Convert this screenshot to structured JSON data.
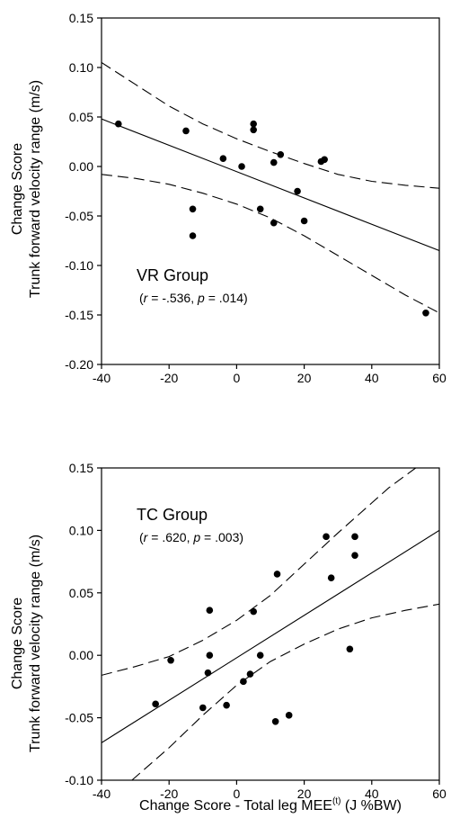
{
  "chart_data": [
    {
      "type": "scatter",
      "group_label": "VR Group",
      "stats": {
        "r": "-.536",
        "p": ".014"
      },
      "ylabel_line1": "Change Score",
      "ylabel_line2": "Trunk forward velocity range (m/s)",
      "xlabel": "",
      "xlim": [
        -40,
        60
      ],
      "ylim": [
        -0.2,
        0.15
      ],
      "xticks": [
        "-40",
        "-20",
        "0",
        "20",
        "40",
        "60"
      ],
      "yticks": [
        "-0.20",
        "-0.15",
        "-0.10",
        "-0.05",
        "0.00",
        "0.05",
        "0.10",
        "0.15"
      ],
      "points": [
        {
          "x": -35,
          "y": 0.043
        },
        {
          "x": -15,
          "y": 0.036
        },
        {
          "x": -13,
          "y": -0.043
        },
        {
          "x": -13,
          "y": -0.07
        },
        {
          "x": -4,
          "y": 0.008
        },
        {
          "x": 1.5,
          "y": 0.0
        },
        {
          "x": 5,
          "y": 0.043
        },
        {
          "x": 5,
          "y": 0.037
        },
        {
          "x": 7,
          "y": -0.043
        },
        {
          "x": 11,
          "y": 0.004
        },
        {
          "x": 11,
          "y": -0.057
        },
        {
          "x": 13,
          "y": 0.012
        },
        {
          "x": 18,
          "y": -0.025
        },
        {
          "x": 20,
          "y": -0.055
        },
        {
          "x": 25,
          "y": 0.005
        },
        {
          "x": 26,
          "y": 0.007
        },
        {
          "x": 56,
          "y": -0.148
        }
      ],
      "fit_line": [
        {
          "x": -40,
          "y": 0.048
        },
        {
          "x": 60,
          "y": -0.085
        }
      ],
      "ci_upper": [
        {
          "x": -40,
          "y": 0.105
        },
        {
          "x": -30,
          "y": 0.083
        },
        {
          "x": -20,
          "y": 0.061
        },
        {
          "x": -10,
          "y": 0.043
        },
        {
          "x": 0,
          "y": 0.028
        },
        {
          "x": 10,
          "y": 0.015
        },
        {
          "x": 20,
          "y": 0.003
        },
        {
          "x": 30,
          "y": -0.008
        },
        {
          "x": 40,
          "y": -0.015
        },
        {
          "x": 50,
          "y": -0.019
        },
        {
          "x": 60,
          "y": -0.022
        }
      ],
      "ci_lower": [
        {
          "x": -40,
          "y": -0.008
        },
        {
          "x": -30,
          "y": -0.012
        },
        {
          "x": -20,
          "y": -0.018
        },
        {
          "x": -10,
          "y": -0.027
        },
        {
          "x": 0,
          "y": -0.038
        },
        {
          "x": 10,
          "y": -0.052
        },
        {
          "x": 20,
          "y": -0.07
        },
        {
          "x": 30,
          "y": -0.09
        },
        {
          "x": 40,
          "y": -0.11
        },
        {
          "x": 50,
          "y": -0.13
        },
        {
          "x": 60,
          "y": -0.148
        }
      ]
    },
    {
      "type": "scatter",
      "group_label": "TC Group",
      "stats": {
        "r": ".620",
        "p": ".003"
      },
      "ylabel_line1": "Change Score",
      "ylabel_line2": "Trunk forward velocity range (m/s)",
      "xlabel": "Change Score - Total leg MEE",
      "xlabel_sup": "(t)",
      "xlabel_units": " (J %BW)",
      "xlim": [
        -40,
        60
      ],
      "ylim": [
        -0.1,
        0.15
      ],
      "xticks": [
        "-40",
        "-20",
        "0",
        "20",
        "40",
        "60"
      ],
      "yticks": [
        "-0.10",
        "-0.05",
        "0.00",
        "0.05",
        "0.10",
        "0.15"
      ],
      "points": [
        {
          "x": -24,
          "y": -0.039
        },
        {
          "x": -19.5,
          "y": -0.004
        },
        {
          "x": -10,
          "y": -0.042
        },
        {
          "x": -8.5,
          "y": -0.014
        },
        {
          "x": -8,
          "y": 0.0
        },
        {
          "x": -8,
          "y": 0.036
        },
        {
          "x": -3,
          "y": -0.04
        },
        {
          "x": 2,
          "y": -0.021
        },
        {
          "x": 4,
          "y": -0.015
        },
        {
          "x": 5,
          "y": 0.035
        },
        {
          "x": 7,
          "y": 0.0
        },
        {
          "x": 11.5,
          "y": -0.053
        },
        {
          "x": 12,
          "y": 0.065
        },
        {
          "x": 15.5,
          "y": -0.048
        },
        {
          "x": 26.5,
          "y": 0.095
        },
        {
          "x": 28,
          "y": 0.062
        },
        {
          "x": 33.5,
          "y": 0.005
        },
        {
          "x": 35,
          "y": 0.095
        },
        {
          "x": 35,
          "y": 0.08
        }
      ],
      "fit_line": [
        {
          "x": -40,
          "y": -0.07
        },
        {
          "x": 60,
          "y": 0.1
        }
      ],
      "ci_upper": [
        {
          "x": -40,
          "y": -0.016
        },
        {
          "x": -30,
          "y": -0.009
        },
        {
          "x": -20,
          "y": -0.001
        },
        {
          "x": -10,
          "y": 0.012
        },
        {
          "x": 0,
          "y": 0.028
        },
        {
          "x": 10,
          "y": 0.048
        },
        {
          "x": 20,
          "y": 0.073
        },
        {
          "x": 30,
          "y": 0.098
        },
        {
          "x": 40,
          "y": 0.122
        },
        {
          "x": 45,
          "y": 0.134
        },
        {
          "x": 53,
          "y": 0.15
        }
      ],
      "ci_lower": [
        {
          "x": -31,
          "y": -0.1
        },
        {
          "x": -20,
          "y": -0.074
        },
        {
          "x": -10,
          "y": -0.048
        },
        {
          "x": 0,
          "y": -0.024
        },
        {
          "x": 10,
          "y": -0.005
        },
        {
          "x": 20,
          "y": 0.009
        },
        {
          "x": 30,
          "y": 0.021
        },
        {
          "x": 40,
          "y": 0.03
        },
        {
          "x": 50,
          "y": 0.036
        },
        {
          "x": 60,
          "y": 0.041
        }
      ]
    }
  ]
}
